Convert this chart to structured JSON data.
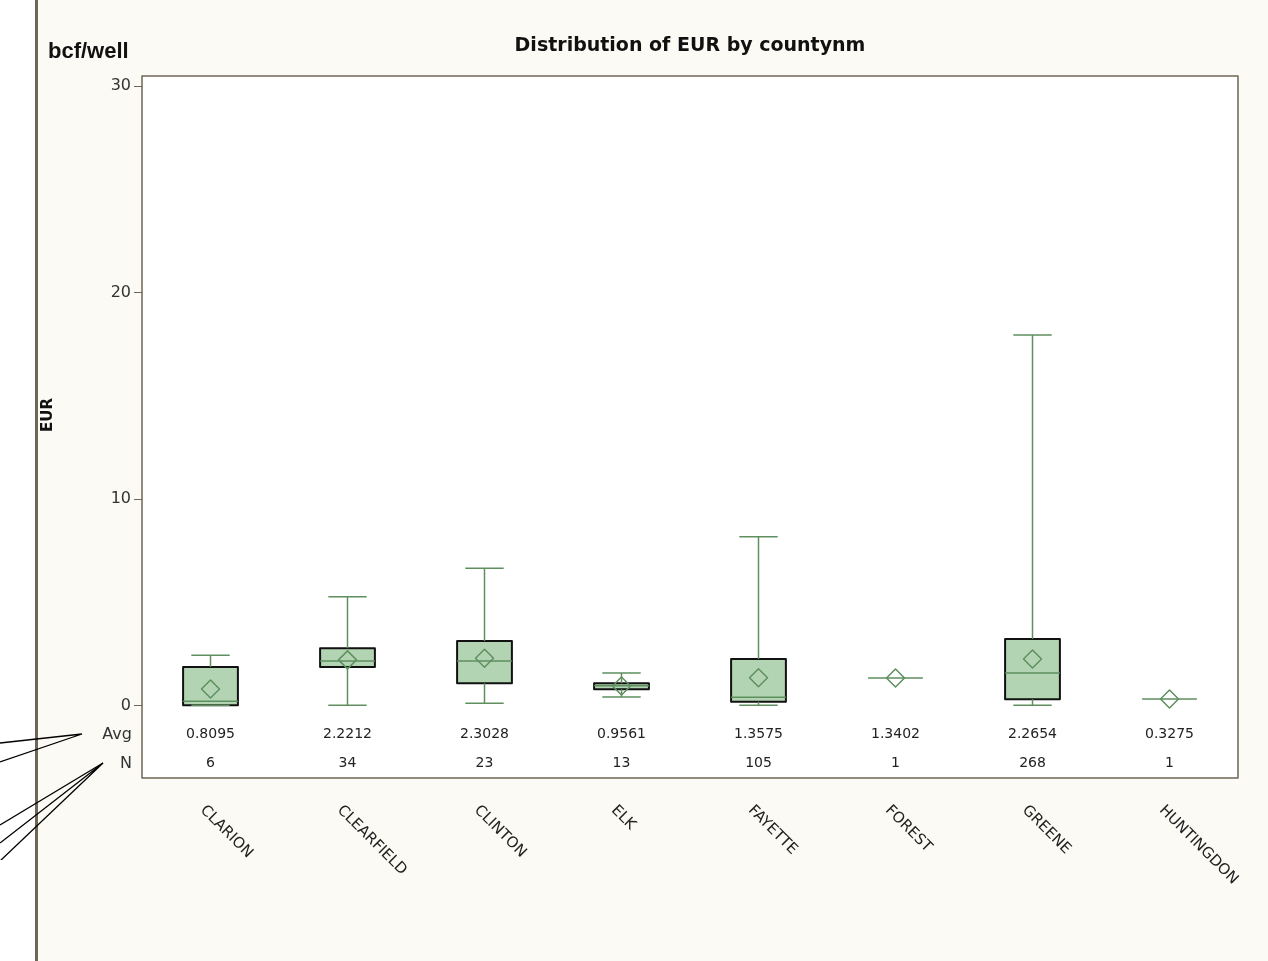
{
  "chart_data": {
    "type": "box",
    "title": "Distribution of EUR by countynm",
    "ylabel": "EUR",
    "categories": [
      "CLARION",
      "CLEARFIELD",
      "CLINTON",
      "ELK",
      "FAYETTE",
      "FOREST",
      "GREENE",
      "HUNTINGDON"
    ],
    "boxes": [
      {
        "low": 0.02,
        "q1": 0.02,
        "median": 0.22,
        "q3": 1.88,
        "high": 2.45,
        "mean": 0.8095
      },
      {
        "low": 0.02,
        "q1": 1.88,
        "median": 2.17,
        "q3": 2.78,
        "high": 5.28,
        "mean": 2.2212
      },
      {
        "low": 0.12,
        "q1": 1.09,
        "median": 2.17,
        "q3": 3.14,
        "high": 6.66,
        "mean": 2.3028
      },
      {
        "low": 0.42,
        "q1": 0.8,
        "median": 0.97,
        "q3": 1.09,
        "high": 1.58,
        "mean": 0.9561
      },
      {
        "low": 0.02,
        "q1": 0.19,
        "median": 0.41,
        "q3": 2.26,
        "high": 8.19,
        "mean": 1.3575
      },
      {
        "low": 1.3402,
        "q1": 1.3402,
        "median": 1.3402,
        "q3": 1.3402,
        "high": 1.3402,
        "mean": 1.3402
      },
      {
        "low": 0.02,
        "q1": 0.31,
        "median": 1.59,
        "q3": 3.23,
        "high": 17.95,
        "mean": 2.2654
      },
      {
        "low": 0.3275,
        "q1": 0.3275,
        "median": 0.3275,
        "q3": 0.3275,
        "high": 0.3275,
        "mean": 0.3275
      }
    ],
    "colors": [
      "#b3d4b3",
      "#b3d4b3",
      "#b3d4b3",
      "#b3d4b3",
      "#b3d4b3",
      "#5f8f5f",
      "#b3d4b3",
      "#5f8f5f"
    ],
    "ylim": [
      -3.5,
      30.5
    ],
    "yticks": [
      0,
      10,
      20,
      30
    ],
    "grid": false,
    "legend": false,
    "annotations": [
      "bcf/well",
      "Avg",
      "N",
      "0.8095",
      "2.2212",
      "2.3028",
      "0.9561",
      "1.3575",
      "1.3402",
      "2.2654",
      "0.3275",
      "6",
      "34",
      "23",
      "13",
      "105",
      "1",
      "268",
      "1"
    ]
  }
}
